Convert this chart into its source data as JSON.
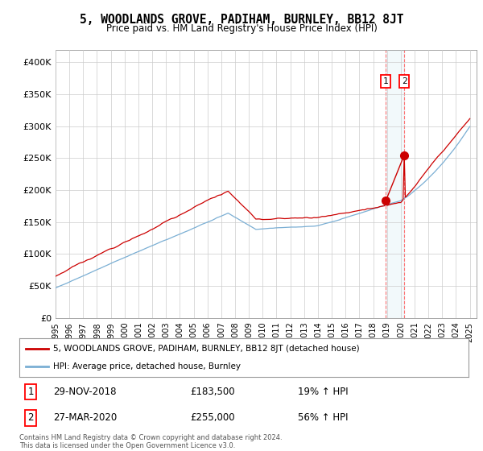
{
  "title": "5, WOODLANDS GROVE, PADIHAM, BURNLEY, BB12 8JT",
  "subtitle": "Price paid vs. HM Land Registry's House Price Index (HPI)",
  "ylim": [
    0,
    420000
  ],
  "yticks": [
    0,
    50000,
    100000,
    150000,
    200000,
    250000,
    300000,
    350000,
    400000
  ],
  "ytick_labels": [
    "£0",
    "£50K",
    "£100K",
    "£150K",
    "£200K",
    "£250K",
    "£300K",
    "£350K",
    "£400K"
  ],
  "background_color": "#ffffff",
  "grid_color": "#cccccc",
  "red_color": "#cc0000",
  "blue_color": "#7bafd4",
  "sale1_price": 183500,
  "sale1_date_str": "29-NOV-2018",
  "sale1_pct": "19% ↑ HPI",
  "sale1_year": 2018.92,
  "sale2_price": 255000,
  "sale2_date_str": "27-MAR-2020",
  "sale2_pct": "56% ↑ HPI",
  "sale2_year": 2020.25,
  "legend_line1": "5, WOODLANDS GROVE, PADIHAM, BURNLEY, BB12 8JT (detached house)",
  "legend_line2": "HPI: Average price, detached house, Burnley",
  "footer": "Contains HM Land Registry data © Crown copyright and database right 2024.\nThis data is licensed under the Open Government Licence v3.0.",
  "start_year": 1995,
  "end_year": 2025
}
